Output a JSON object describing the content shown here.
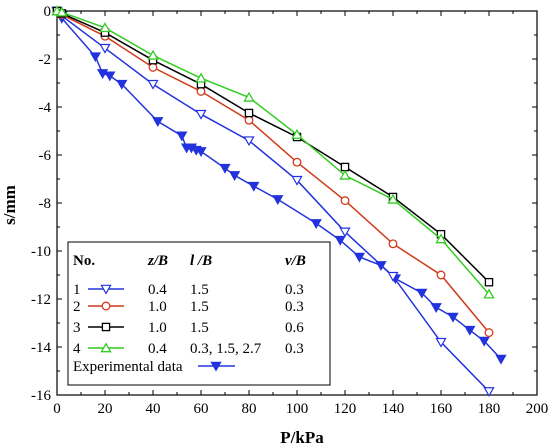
{
  "chart_data": {
    "type": "line",
    "xlabel": "P/kPa",
    "ylabel": "s/mm",
    "xlim": [
      0,
      200
    ],
    "ylim": [
      -16,
      0
    ],
    "xticks": [
      "0",
      "20",
      "40",
      "60",
      "80",
      "100",
      "120",
      "140",
      "160",
      "180",
      "200"
    ],
    "yticks": [
      "0",
      "-2",
      "-4",
      "-6",
      "-8",
      "-10",
      "-12",
      "-14",
      "-16"
    ],
    "grid": false,
    "legend": {
      "placement": "bottom-left",
      "headers": [
        "No.",
        "z/B",
        "l /B",
        "ν/B"
      ],
      "rows": [
        {
          "no": "1",
          "zB": "0.4",
          "lB": "1.5",
          "vB": "0.3"
        },
        {
          "no": "2",
          "zB": "1.0",
          "lB": "1.5",
          "vB": "0.3"
        },
        {
          "no": "3",
          "zB": "1.0",
          "lB": "1.5",
          "vB": "0.6"
        },
        {
          "no": "4",
          "zB": "0.4",
          "lB": "0.3, 1.5, 2.7",
          "vB": "0.3"
        }
      ],
      "experimental_label": "Experimental data"
    },
    "series": [
      {
        "name": "1",
        "color": "#2233dd",
        "marker": "triangle-down-open",
        "x": [
          0,
          2,
          20,
          40,
          60,
          80,
          100,
          120,
          140,
          160,
          180
        ],
        "y": [
          0,
          -0.2,
          -1.55,
          -3.05,
          -4.3,
          -5.4,
          -7.05,
          -9.2,
          -11.05,
          -13.8,
          -15.85
        ]
      },
      {
        "name": "2",
        "color": "#d03a1a",
        "marker": "circle-open",
        "x": [
          0,
          2,
          20,
          40,
          60,
          80,
          100,
          120,
          140,
          160,
          180
        ],
        "y": [
          0,
          -0.15,
          -1.05,
          -2.35,
          -3.35,
          -4.55,
          -6.3,
          -7.9,
          -9.7,
          -11.0,
          -13.4
        ]
      },
      {
        "name": "3",
        "color": "#000000",
        "marker": "square-open",
        "x": [
          0,
          2,
          20,
          40,
          60,
          80,
          100,
          120,
          140,
          160,
          180
        ],
        "y": [
          0,
          -0.1,
          -0.9,
          -2.05,
          -3.05,
          -4.25,
          -5.25,
          -6.5,
          -7.75,
          -9.3,
          -11.3
        ]
      },
      {
        "name": "4",
        "color": "#33cc22",
        "marker": "triangle-up-open",
        "x": [
          0,
          2,
          20,
          40,
          60,
          80,
          100,
          120,
          140,
          160,
          180
        ],
        "y": [
          0,
          -0.05,
          -0.7,
          -1.85,
          -2.8,
          -3.6,
          -5.15,
          -6.85,
          -7.85,
          -9.5,
          -11.8
        ]
      },
      {
        "name": "Experimental data",
        "color": "#2233dd",
        "marker": "triangle-down-filled",
        "x": [
          0,
          2,
          16,
          19,
          22,
          27,
          42,
          52,
          54,
          56,
          58,
          60,
          70,
          74,
          82,
          92,
          108,
          118,
          126,
          135,
          141,
          152,
          158,
          165,
          172,
          178,
          185
        ],
        "y": [
          0,
          -0.3,
          -1.9,
          -2.6,
          -2.7,
          -3.05,
          -4.6,
          -5.2,
          -5.7,
          -5.7,
          -5.8,
          -5.85,
          -6.55,
          -6.85,
          -7.3,
          -7.85,
          -8.85,
          -9.55,
          -10.25,
          -10.6,
          -11.15,
          -11.75,
          -12.35,
          -12.75,
          -13.3,
          -13.75,
          -14.5
        ]
      }
    ]
  }
}
